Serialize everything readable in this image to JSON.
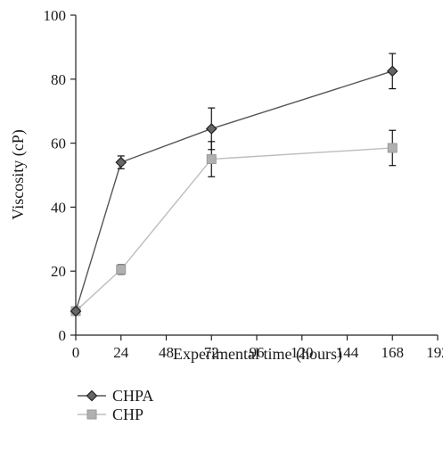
{
  "chart_data": {
    "type": "line",
    "title": "",
    "xlabel": "Experimental time (hours)",
    "ylabel": "Viscosity (cP)",
    "xlim": [
      0,
      192
    ],
    "ylim": [
      0,
      100
    ],
    "xticks": [
      0,
      24,
      48,
      72,
      96,
      120,
      144,
      168,
      192
    ],
    "yticks": [
      0,
      20,
      40,
      60,
      80,
      100
    ],
    "grid": false,
    "legend_position": "bottom-left",
    "series": [
      {
        "name": "CHPA",
        "marker": "diamond",
        "color": "#555555",
        "marker_color": "#666666",
        "x": [
          0,
          24,
          72,
          168
        ],
        "y": [
          7.5,
          54,
          64.5,
          82.5
        ],
        "error": [
          0,
          2,
          6.5,
          5.5
        ]
      },
      {
        "name": "CHP",
        "marker": "square",
        "color": "#bdbdbd",
        "marker_color": "#b0b0b0",
        "x": [
          0,
          24,
          72,
          168
        ],
        "y": [
          7.5,
          20.5,
          55,
          58.5
        ],
        "error": [
          0,
          1.5,
          5.5,
          5.5
        ]
      }
    ]
  }
}
